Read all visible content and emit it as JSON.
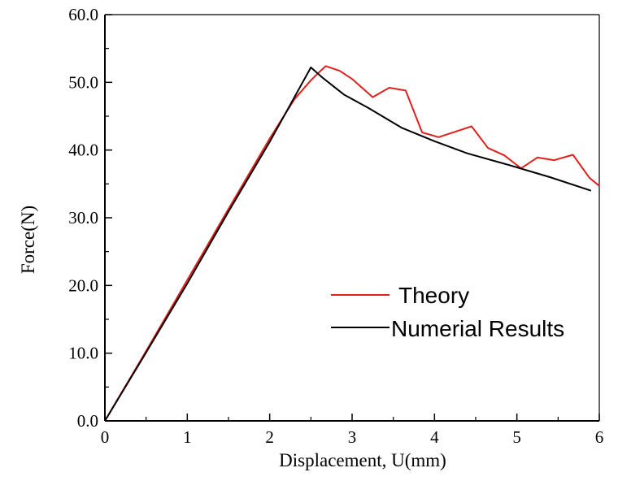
{
  "chart_data": {
    "type": "line",
    "title": "",
    "xlabel": "Displacement, U(mm)",
    "ylabel": "Force(N)",
    "xlim": [
      0,
      6
    ],
    "ylim": [
      0,
      60
    ],
    "x_ticks": [
      0,
      1,
      2,
      3,
      4,
      5,
      6
    ],
    "x_tick_labels": [
      "0",
      "1",
      "2",
      "3",
      "4",
      "5",
      "6"
    ],
    "y_ticks": [
      0,
      10,
      20,
      30,
      40,
      50,
      60
    ],
    "y_tick_labels": [
      "0.0",
      "10.0",
      "20.0",
      "30.0",
      "40.0",
      "50.0",
      "60.0"
    ],
    "grid": false,
    "legend_position": "center-right",
    "series": [
      {
        "name": "Theory",
        "color": "#e0201c",
        "x": [
          0,
          0.5,
          1.0,
          1.5,
          2.0,
          2.3,
          2.5,
          2.6,
          2.68,
          2.85,
          3.0,
          3.25,
          3.45,
          3.65,
          3.85,
          4.05,
          4.25,
          4.45,
          4.65,
          4.85,
          5.05,
          5.25,
          5.45,
          5.68,
          5.88,
          6.0
        ],
        "values": [
          0,
          10.3,
          20.8,
          31.3,
          41.7,
          47.5,
          50.3,
          51.5,
          52.4,
          51.7,
          50.5,
          47.8,
          49.2,
          48.8,
          42.6,
          41.9,
          42.7,
          43.5,
          40.3,
          39.2,
          37.3,
          38.9,
          38.5,
          39.3,
          35.9,
          34.7
        ]
      },
      {
        "name": "Numerial Results",
        "color": "#000000",
        "x": [
          0,
          0.5,
          1.0,
          1.5,
          2.0,
          2.5,
          2.65,
          2.9,
          3.2,
          3.6,
          4.0,
          4.4,
          4.9,
          5.4,
          5.9
        ],
        "values": [
          0,
          10.1,
          20.3,
          30.9,
          41.2,
          52.2,
          50.6,
          48.2,
          46.2,
          43.3,
          41.3,
          39.5,
          37.8,
          36.0,
          34.0
        ]
      }
    ]
  }
}
